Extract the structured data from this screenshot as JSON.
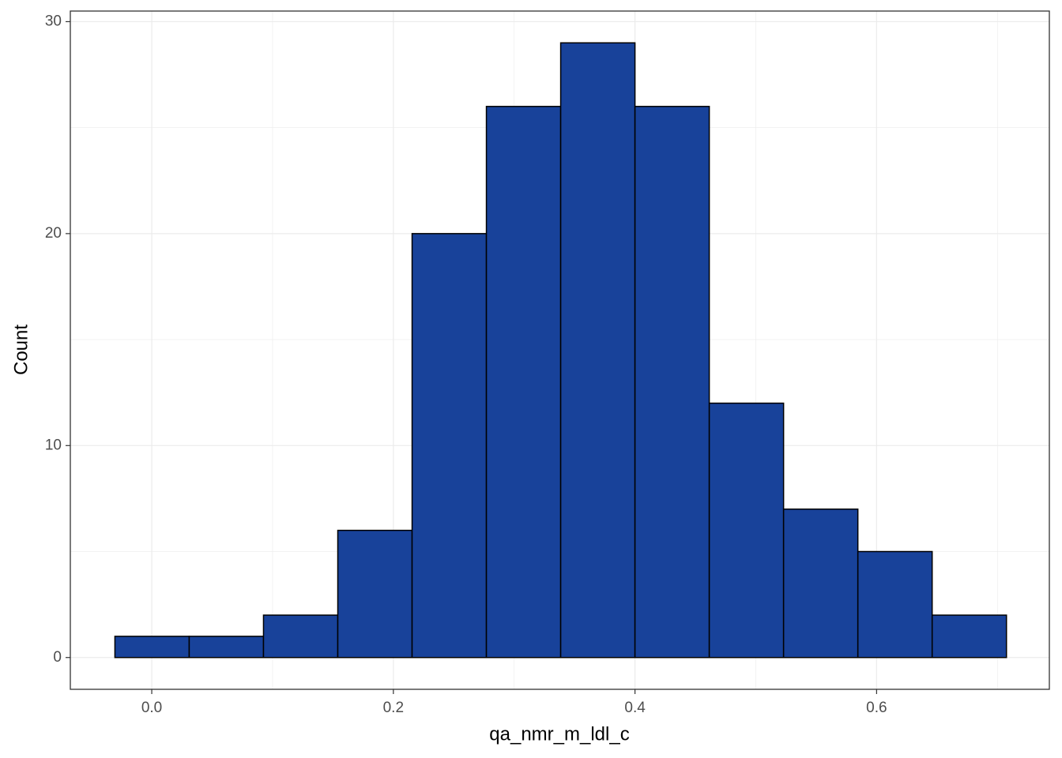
{
  "chart_data": {
    "type": "histogram",
    "x_label": "qa_nmr_m_ldl_c",
    "y_label": "Count",
    "bins": [
      -0.0305,
      0.031,
      0.0925,
      0.154,
      0.2155,
      0.277,
      0.3385,
      0.4,
      0.4615,
      0.523,
      0.5845,
      0.646,
      0.7075
    ],
    "values": [
      1,
      1,
      2,
      6,
      20,
      26,
      29,
      26,
      12,
      7,
      5,
      2
    ],
    "color": "#18429a",
    "edge_color": "#000000",
    "xlim": [
      -0.0674,
      0.743
    ],
    "ylim": [
      -1.5,
      30.5
    ],
    "xticks": [
      {
        "value": 0,
        "label": "0.0"
      },
      0.2,
      0.4,
      0.6
    ],
    "yticks": [
      0,
      10,
      20,
      30
    ],
    "grid": true
  }
}
